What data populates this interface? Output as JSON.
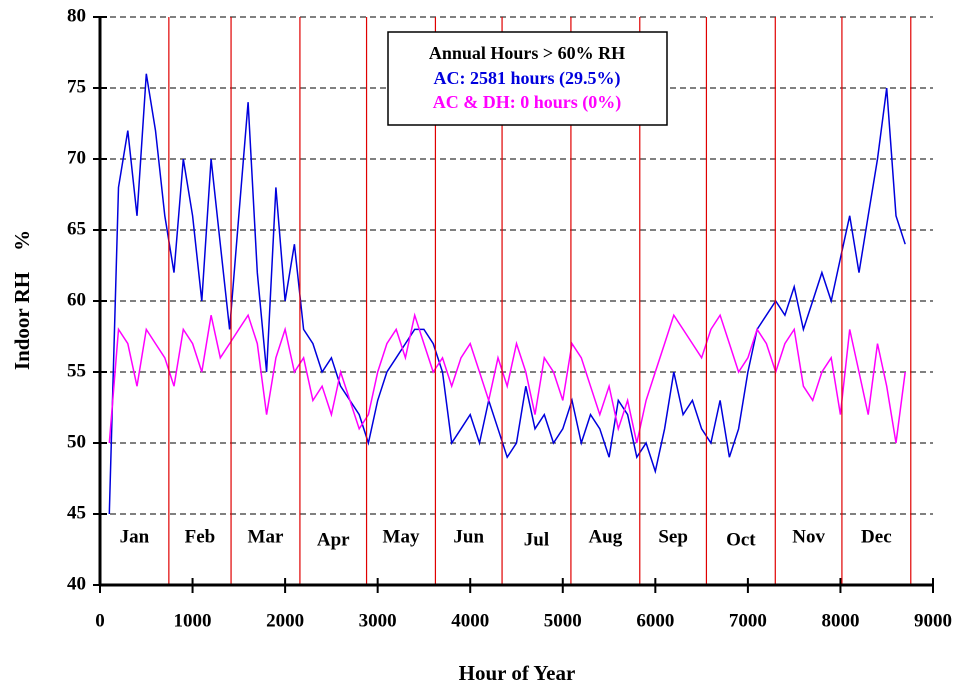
{
  "chart_data": {
    "type": "line",
    "xlabel": "Hour of Year",
    "ylabel": "Indoor RH    %",
    "legend_title": "Annual Hours > 60% RH",
    "xlim": [
      0,
      9000
    ],
    "ylim": [
      40,
      80
    ],
    "xticks": [
      0,
      1000,
      2000,
      3000,
      4000,
      5000,
      6000,
      7000,
      8000,
      9000
    ],
    "yticks": [
      40,
      45,
      50,
      55,
      60,
      65,
      70,
      75,
      80
    ],
    "grid": true,
    "months": [
      "Jan",
      "Feb",
      "Mar",
      "Apr",
      "May",
      "Jun",
      "Jul",
      "Aug",
      "Sep",
      "Oct",
      "Nov",
      "Dec"
    ],
    "month_boundaries": [
      744,
      1416,
      2160,
      2880,
      3624,
      4344,
      5088,
      5832,
      6552,
      7296,
      8016,
      8760
    ],
    "boundary_color": "#e00000",
    "x": [
      100,
      200,
      300,
      400,
      500,
      600,
      700,
      800,
      900,
      1000,
      1100,
      1200,
      1300,
      1400,
      1500,
      1600,
      1700,
      1800,
      1900,
      2000,
      2100,
      2200,
      2300,
      2400,
      2500,
      2600,
      2700,
      2800,
      2900,
      3000,
      3100,
      3200,
      3300,
      3400,
      3500,
      3600,
      3700,
      3800,
      3900,
      4000,
      4100,
      4200,
      4300,
      4400,
      4500,
      4600,
      4700,
      4800,
      4900,
      5000,
      5100,
      5200,
      5300,
      5400,
      5500,
      5600,
      5700,
      5800,
      5900,
      6000,
      6100,
      6200,
      6300,
      6400,
      6500,
      6600,
      6700,
      6800,
      6900,
      7000,
      7100,
      7200,
      7300,
      7400,
      7500,
      7600,
      7700,
      7800,
      7900,
      8000,
      8100,
      8200,
      8300,
      8400,
      8500,
      8600,
      8700
    ],
    "series": [
      {
        "name": "AC: 2581 hours (29.5%)",
        "color": "#0000dd",
        "values": [
          45,
          68,
          72,
          66,
          76,
          72,
          66,
          62,
          70,
          66,
          60,
          70,
          64,
          58,
          66,
          74,
          62,
          55,
          68,
          60,
          64,
          58,
          57,
          55,
          56,
          54,
          53,
          52,
          50,
          53,
          55,
          56,
          57,
          58,
          58,
          57,
          55,
          50,
          51,
          52,
          50,
          53,
          51,
          49,
          50,
          54,
          51,
          52,
          50,
          51,
          53,
          50,
          52,
          51,
          49,
          53,
          52,
          49,
          50,
          48,
          51,
          55,
          52,
          53,
          51,
          50,
          53,
          49,
          51,
          55,
          58,
          59,
          60,
          59,
          61,
          58,
          60,
          62,
          60,
          63,
          66,
          62,
          66,
          70,
          75,
          66,
          64
        ]
      },
      {
        "name": "AC & DH: 0 hours (0%)",
        "color": "#ff00ff",
        "values": [
          50,
          58,
          57,
          54,
          58,
          57,
          56,
          54,
          58,
          57,
          55,
          59,
          56,
          57,
          58,
          59,
          57,
          52,
          56,
          58,
          55,
          56,
          53,
          54,
          52,
          55,
          53,
          51,
          52,
          55,
          57,
          58,
          56,
          59,
          57,
          55,
          56,
          54,
          56,
          57,
          55,
          53,
          56,
          54,
          57,
          55,
          52,
          56,
          55,
          53,
          57,
          56,
          54,
          52,
          54,
          51,
          53,
          50,
          53,
          55,
          57,
          59,
          58,
          57,
          56,
          58,
          59,
          57,
          55,
          56,
          58,
          57,
          55,
          57,
          58,
          54,
          53,
          55,
          56,
          52,
          58,
          55,
          52,
          57,
          54,
          50,
          55
        ]
      }
    ]
  }
}
